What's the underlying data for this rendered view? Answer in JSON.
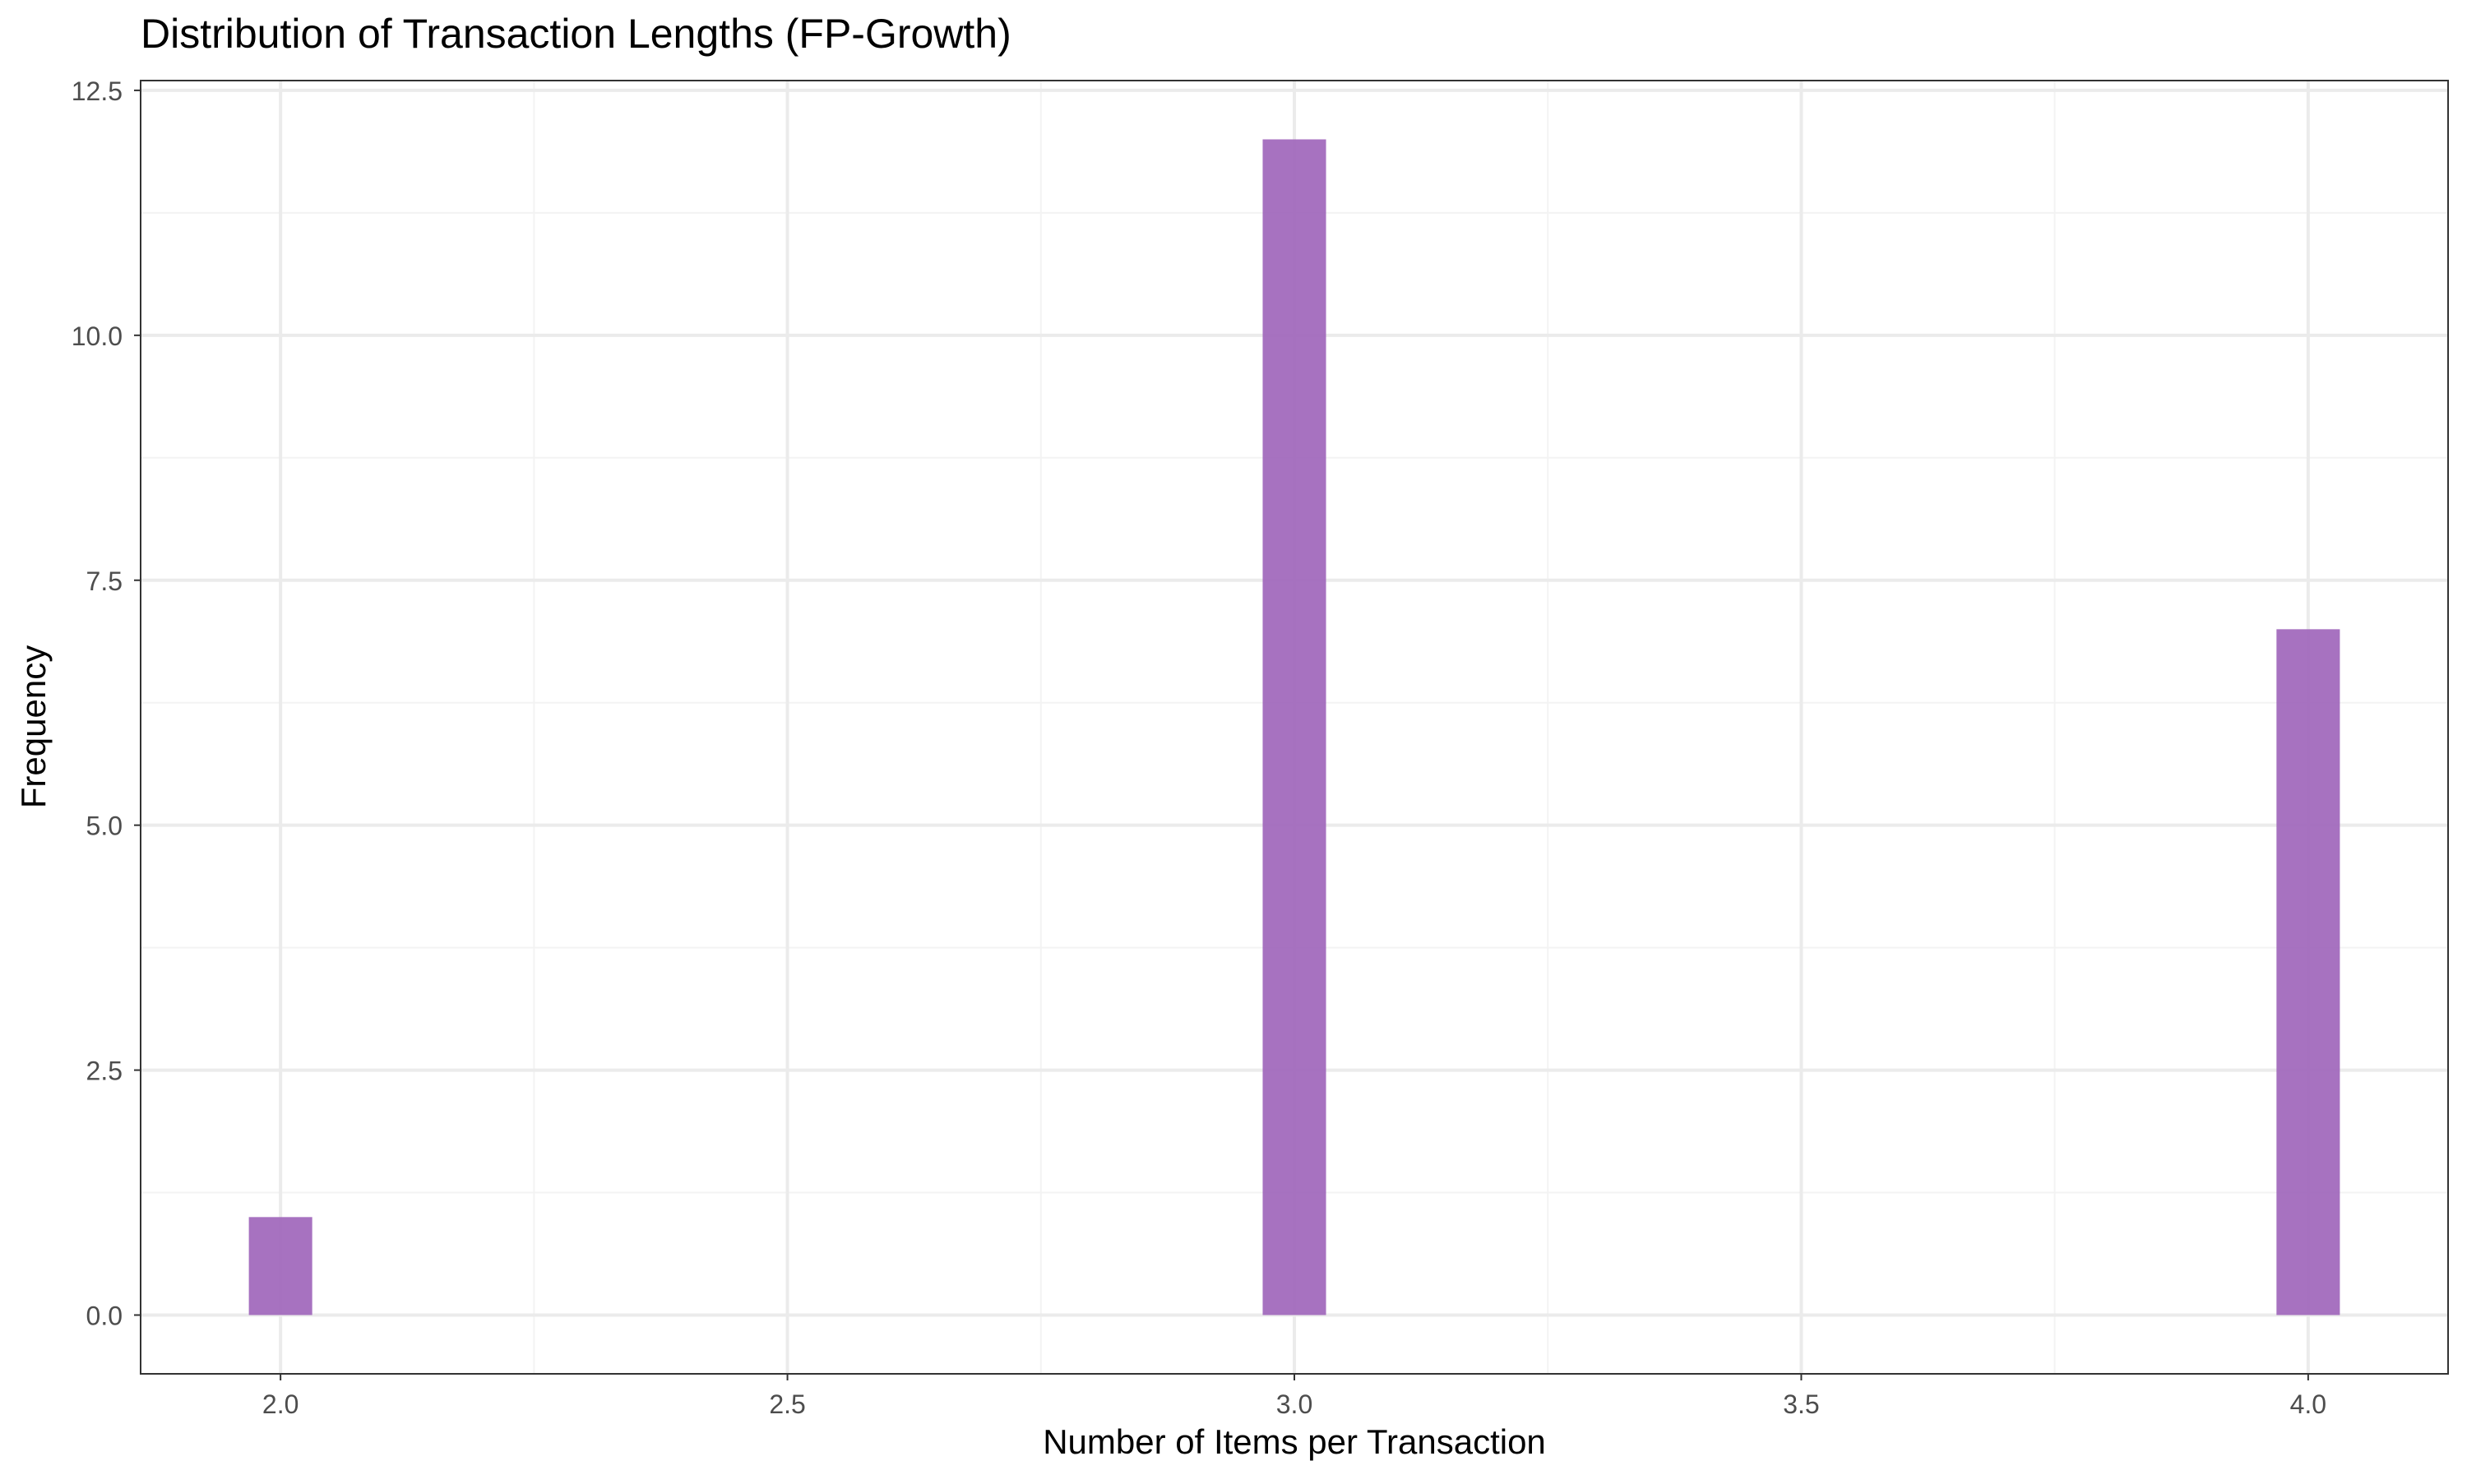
{
  "chart_data": {
    "type": "bar",
    "title": "Distribution of Transaction Lengths (FP-Growth)",
    "xlabel": "Number of Items per Transaction",
    "ylabel": "Frequency",
    "x": [
      2,
      3,
      4
    ],
    "values": [
      1,
      12,
      7
    ],
    "bin_width": 0.0625,
    "xlim": [
      1.862,
      4.138
    ],
    "ylim": [
      -0.6,
      12.6
    ],
    "x_ticks": [
      2.0,
      2.5,
      3.0,
      3.5,
      4.0
    ],
    "x_tick_labels": [
      "2.0",
      "2.5",
      "3.0",
      "3.5",
      "4.0"
    ],
    "y_ticks": [
      0,
      2.5,
      5,
      7.5,
      10,
      12.5
    ],
    "y_tick_labels": [
      "0.0",
      "2.5",
      "5.0",
      "7.5",
      "10.0",
      "12.5"
    ],
    "grid": true,
    "legend": "none",
    "colors": {
      "bar_fill": "#a066bb",
      "grid_major": "#ebebeb",
      "grid_minor": "#f3f3f3",
      "panel_border": "#333333",
      "tick_text": "#4d4d4d",
      "title_text": "#000000"
    }
  }
}
